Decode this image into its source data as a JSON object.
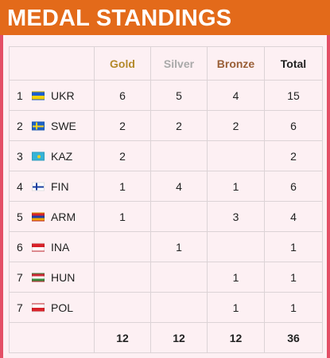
{
  "header": {
    "title": "MEDAL STANDINGS"
  },
  "table": {
    "columns": {
      "gold": "Gold",
      "silver": "Silver",
      "bronze": "Bronze",
      "total": "Total"
    },
    "rows": [
      {
        "rank": "1",
        "flag": "ukraine-flag-icon",
        "code": "UKR",
        "gold": "6",
        "silver": "5",
        "bronze": "4",
        "total": "15"
      },
      {
        "rank": "2",
        "flag": "sweden-flag-icon",
        "code": "SWE",
        "gold": "2",
        "silver": "2",
        "bronze": "2",
        "total": "6"
      },
      {
        "rank": "3",
        "flag": "kazakhstan-flag-icon",
        "code": "KAZ",
        "gold": "2",
        "silver": "",
        "bronze": "",
        "total": "2"
      },
      {
        "rank": "4",
        "flag": "finland-flag-icon",
        "code": "FIN",
        "gold": "1",
        "silver": "4",
        "bronze": "1",
        "total": "6"
      },
      {
        "rank": "5",
        "flag": "armenia-flag-icon",
        "code": "ARM",
        "gold": "1",
        "silver": "",
        "bronze": "3",
        "total": "4"
      },
      {
        "rank": "6",
        "flag": "indonesia-flag-icon",
        "code": "INA",
        "gold": "",
        "silver": "1",
        "bronze": "",
        "total": "1"
      },
      {
        "rank": "7",
        "flag": "hungary-flag-icon",
        "code": "HUN",
        "gold": "",
        "silver": "",
        "bronze": "1",
        "total": "1"
      },
      {
        "rank": "7",
        "flag": "poland-flag-icon",
        "code": "POL",
        "gold": "",
        "silver": "",
        "bronze": "1",
        "total": "1"
      }
    ],
    "totals": {
      "gold": "12",
      "silver": "12",
      "bronze": "12",
      "total": "36"
    }
  },
  "colors": {
    "header_bg": "#e36a1a",
    "panel_bg": "#fdf0f3",
    "panel_border": "#e44f66",
    "gold": "#b48a2a",
    "silver": "#a9a9a9",
    "bronze": "#9a5f37"
  }
}
